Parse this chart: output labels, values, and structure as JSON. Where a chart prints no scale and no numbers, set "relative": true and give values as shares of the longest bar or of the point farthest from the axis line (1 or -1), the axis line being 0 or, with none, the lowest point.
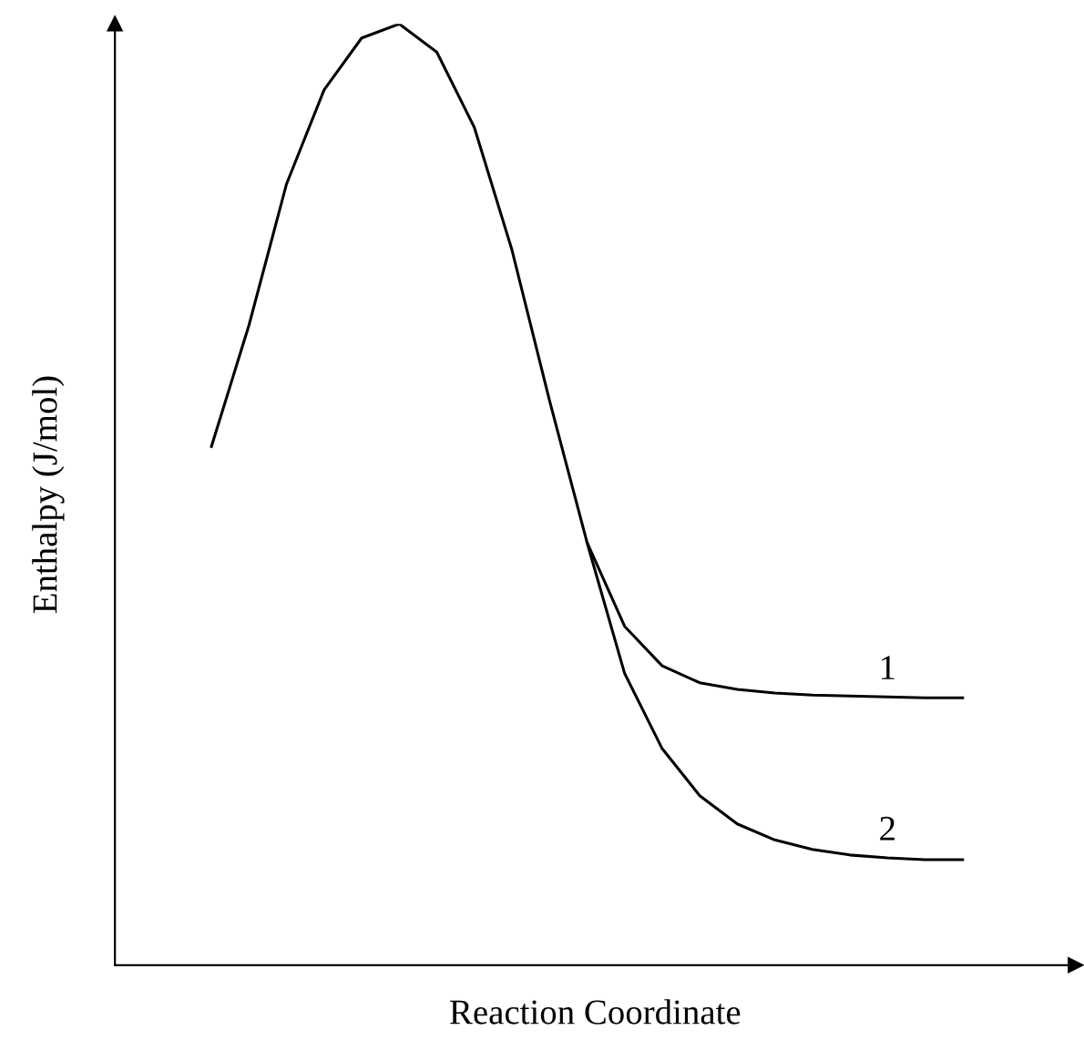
{
  "chart_data": {
    "type": "line",
    "relative": true,
    "xlabel": "Reaction Coordinate",
    "ylabel": "Enthalpy (J/mol)",
    "marker": "none",
    "line_style": "solid",
    "categories": [
      null,
      null,
      null,
      null,
      null,
      null,
      null,
      null,
      null,
      null,
      null,
      null,
      null,
      null,
      null,
      null,
      null,
      null,
      null,
      null,
      null
    ],
    "series": [
      {
        "name": "1",
        "color": "#000000",
        "values": [
          0.551,
          0.68,
          0.83,
          0.93,
          0.985,
          1.0,
          0.97,
          0.89,
          0.76,
          0.6,
          0.449,
          0.36,
          0.318,
          0.3,
          0.293,
          0.289,
          0.287,
          0.286,
          0.285,
          0.284,
          0.284
        ]
      },
      {
        "name": "2",
        "color": "#000000",
        "values": [
          null,
          null,
          null,
          null,
          null,
          null,
          null,
          null,
          null,
          null,
          0.449,
          0.31,
          0.23,
          0.18,
          0.15,
          0.133,
          0.123,
          0.117,
          0.114,
          0.112,
          0.112
        ]
      }
    ]
  }
}
